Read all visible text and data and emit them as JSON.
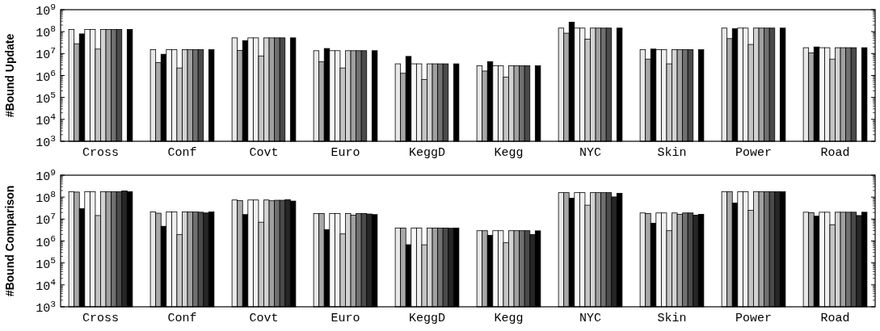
{
  "chart_data": [
    {
      "type": "bar",
      "ylabel": "#Bound Update",
      "log": true,
      "categories": [
        "Cross",
        "Conf",
        "Covt",
        "Euro",
        "KeggD",
        "Kegg",
        "NYC",
        "Skin",
        "Power",
        "Road"
      ],
      "ylim": [
        1000,
        1000000000
      ],
      "yticks": [
        {
          "value": 1000,
          "label": "10$^{3}$"
        },
        {
          "value": 10000,
          "label": "10$^{4}$"
        },
        {
          "value": 100000,
          "label": "10$^{5}$"
        },
        {
          "value": 1000000,
          "label": "10$^{6}$"
        },
        {
          "value": 10000000,
          "label": "10$^{7}$"
        },
        {
          "value": 100000000,
          "label": "10$^{8}$"
        },
        {
          "value": 1000000000,
          "label": "10$^{9}$"
        }
      ],
      "series": [
        {
          "color": "#e8e8e8",
          "values": [
            126000000.0,
            15000000.0,
            52000000.0,
            13500000.0,
            3400000.0,
            2800000.0,
            145000000.0,
            15000000.0,
            145000000.0,
            18500000.0
          ]
        },
        {
          "color": "#a8a8a8",
          "values": [
            28000000.0,
            3900000.0,
            14000000.0,
            4200000.0,
            1260000.0,
            1600000.0,
            85000000.0,
            5600000.0,
            48000000.0,
            10700000.0
          ]
        },
        {
          "color": "#000000",
          "values": [
            79000000.0,
            9300000.0,
            39000000.0,
            17000000.0,
            7400000.0,
            4300000.0,
            270000000.0,
            16000000.0,
            135000000.0,
            20000000.0
          ]
        },
        {
          "color": "#f8f8f8",
          "values": [
            126000000.0,
            15000000.0,
            52000000.0,
            13500000.0,
            3400000.0,
            2800000.0,
            145000000.0,
            15000000.0,
            145000000.0,
            18500000.0
          ]
        },
        {
          "color": "#f0f0f0",
          "values": [
            126000000.0,
            15000000.0,
            52000000.0,
            13500000.0,
            3400000.0,
            2800000.0,
            145000000.0,
            15000000.0,
            145000000.0,
            18500000.0
          ]
        },
        {
          "color": "#c4c4c4",
          "values": [
            16000000.0,
            2200000.0,
            7800000.0,
            2200000.0,
            660000.0,
            850000.0,
            45000000.0,
            3400000.0,
            26000000.0,
            5600000.0
          ]
        },
        {
          "color": "#d3d3d3",
          "values": [
            126000000.0,
            15000000.0,
            52000000.0,
            13500000.0,
            3400000.0,
            2800000.0,
            145000000.0,
            15000000.0,
            145000000.0,
            18500000.0
          ]
        },
        {
          "color": "#a0a0a0",
          "values": [
            126000000.0,
            15000000.0,
            52000000.0,
            13500000.0,
            3400000.0,
            2800000.0,
            145000000.0,
            15000000.0,
            145000000.0,
            18500000.0
          ]
        },
        {
          "color": "#707070",
          "values": [
            126000000.0,
            15000000.0,
            52000000.0,
            13500000.0,
            3400000.0,
            2800000.0,
            145000000.0,
            15000000.0,
            145000000.0,
            18500000.0
          ]
        },
        {
          "color": "#4a4a4a",
          "values": [
            126000000.0,
            15000000.0,
            52000000.0,
            13500000.0,
            3400000.0,
            2800000.0,
            145000000.0,
            15000000.0,
            145000000.0,
            18500000.0
          ]
        },
        {
          "values": [
            null,
            null,
            null,
            null,
            null,
            null,
            null,
            null,
            null,
            null
          ]
        },
        {
          "color": "#000000",
          "values": [
            126000000.0,
            15000000.0,
            52000000.0,
            13500000.0,
            3400000.0,
            2800000.0,
            145000000.0,
            15000000.0,
            145000000.0,
            18500000.0
          ]
        }
      ]
    },
    {
      "type": "bar",
      "ylabel": "#Bound Comparison",
      "log": true,
      "categories": [
        "Cross",
        "Conf",
        "Covt",
        "Euro",
        "KeggD",
        "Kegg",
        "NYC",
        "Skin",
        "Power",
        "Road"
      ],
      "ylim": [
        1000,
        1000000000
      ],
      "yticks": [
        {
          "value": 1000,
          "label": "10$^{3}$"
        },
        {
          "value": 10000,
          "label": "10$^{4}$"
        },
        {
          "value": 100000,
          "label": "10$^{5}$"
        },
        {
          "value": 1000000,
          "label": "10$^{6}$"
        },
        {
          "value": 10000000,
          "label": "10$^{7}$"
        },
        {
          "value": 100000000,
          "label": "10$^{8}$"
        },
        {
          "value": 1000000000,
          "label": "10$^{9}$"
        }
      ],
      "series": [
        {
          "color": "#e8e8e8",
          "values": [
            178000000.0,
            21000000.0,
            74000000.0,
            18000000.0,
            3900000.0,
            2950000.0,
            160000000.0,
            19000000.0,
            178000000.0,
            20500000.0
          ]
        },
        {
          "color": "#a8a8a8",
          "values": [
            170000000.0,
            18500000.0,
            70000000.0,
            18000000.0,
            3900000.0,
            2950000.0,
            160000000.0,
            18000000.0,
            178000000.0,
            19500000.0
          ]
        },
        {
          "color": "#000000",
          "values": [
            30000000.0,
            4700000.0,
            16000000.0,
            3300000.0,
            680000.0,
            1800000.0,
            89000000.0,
            6500000.0,
            54000000.0,
            13500000.0
          ]
        },
        {
          "color": "#f8f8f8",
          "values": [
            178000000.0,
            21000000.0,
            74000000.0,
            18000000.0,
            3900000.0,
            2950000.0,
            160000000.0,
            19000000.0,
            178000000.0,
            20500000.0
          ]
        },
        {
          "color": "#f0f0f0",
          "values": [
            178000000.0,
            21000000.0,
            74000000.0,
            18000000.0,
            3900000.0,
            2950000.0,
            160000000.0,
            19000000.0,
            178000000.0,
            20500000.0
          ]
        },
        {
          "color": "#c4c4c4",
          "values": [
            14500000.0,
            1950000.0,
            7200000.0,
            2100000.0,
            670000.0,
            830000.0,
            43000000.0,
            2950000.0,
            25000000.0,
            5400000.0
          ]
        },
        {
          "color": "#d3d3d3",
          "values": [
            178000000.0,
            21000000.0,
            74000000.0,
            18000000.0,
            3900000.0,
            2950000.0,
            160000000.0,
            19000000.0,
            178000000.0,
            20500000.0
          ]
        },
        {
          "color": "#a0a0a0",
          "values": [
            178000000.0,
            21000000.0,
            68000000.0,
            15000000.0,
            3900000.0,
            2950000.0,
            160000000.0,
            16500000.0,
            178000000.0,
            20500000.0
          ]
        },
        {
          "color": "#707070",
          "values": [
            178000000.0,
            21000000.0,
            72000000.0,
            18000000.0,
            3900000.0,
            2950000.0,
            160000000.0,
            19000000.0,
            178000000.0,
            20500000.0
          ]
        },
        {
          "color": "#4a4a4a",
          "values": [
            178000000.0,
            20500000.0,
            72000000.0,
            18000000.0,
            3900000.0,
            2950000.0,
            160000000.0,
            19000000.0,
            178000000.0,
            20500000.0
          ]
        },
        {
          "color": "#262626",
          "values": [
            190000000.0,
            19000000.0,
            77000000.0,
            17000000.0,
            3800000.0,
            1950000.0,
            102000000.0,
            15000000.0,
            178000000.0,
            14500000.0
          ]
        },
        {
          "color": "#000000",
          "values": [
            178000000.0,
            21000000.0,
            66000000.0,
            16000000.0,
            3900000.0,
            2900000.0,
            150000000.0,
            16500000.0,
            178000000.0,
            20500000.0
          ]
        }
      ]
    }
  ]
}
